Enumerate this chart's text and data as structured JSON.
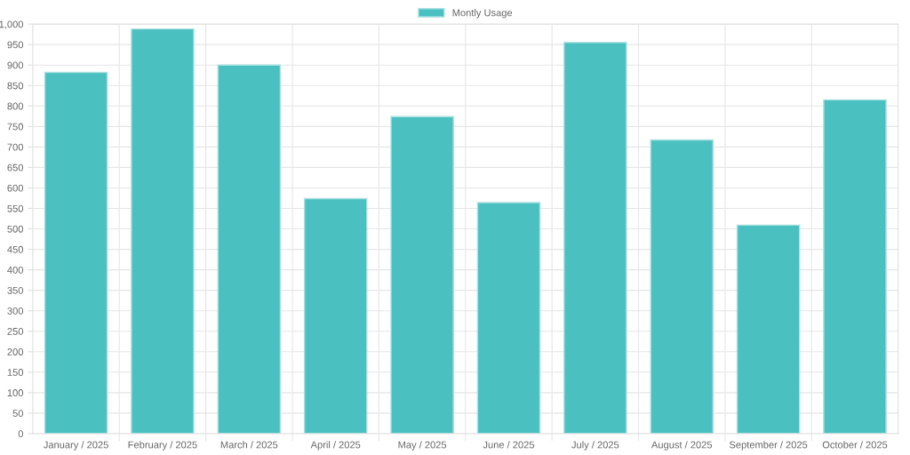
{
  "chart_data": {
    "type": "bar",
    "categories": [
      "January / 2025",
      "February / 2025",
      "March / 2025",
      "April / 2025",
      "May / 2025",
      "June / 2025",
      "July / 2025",
      "August / 2025",
      "September / 2025",
      "October / 2025"
    ],
    "series": [
      {
        "name": "Montly Usage",
        "color": "#4bc0c0",
        "values": [
          882,
          988,
          900,
          574,
          774,
          564,
          955,
          717,
          509,
          815
        ]
      }
    ],
    "ylim": [
      0,
      1000
    ],
    "yticks": [
      0,
      50,
      100,
      150,
      200,
      250,
      300,
      350,
      400,
      450,
      500,
      550,
      600,
      650,
      700,
      750,
      800,
      850,
      900,
      950,
      {
        "value": 1000,
        "label": "1,000"
      }
    ],
    "grid": true,
    "legend": "top"
  }
}
